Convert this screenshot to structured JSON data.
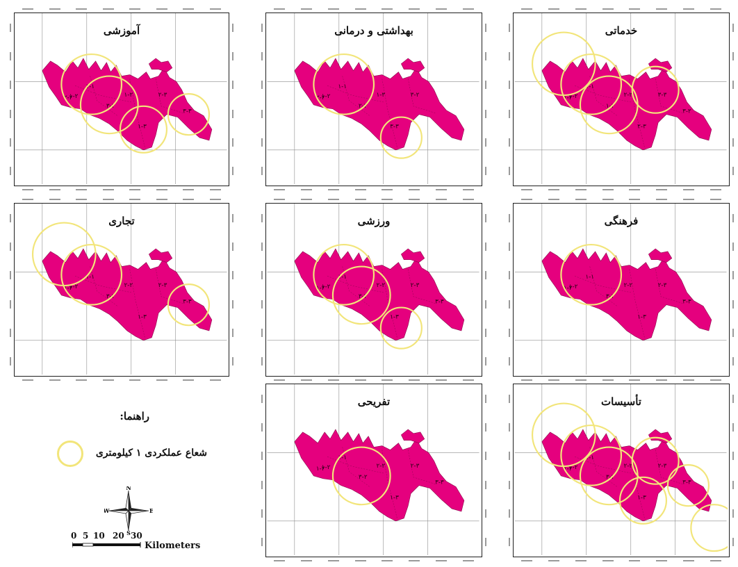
{
  "panels": [
    {
      "title": "آموزشی",
      "labels": [
        "۱-۱",
        "۱-۲",
        "۲-۲",
        "۱-۲",
        "۳-۲",
        "۱-۳",
        "۲-۳",
        "۳-۳"
      ],
      "circles": [
        "c1",
        "c2",
        "c3",
        "c5"
      ]
    },
    {
      "title": "بهداشتی و درمانی",
      "labels": [
        "۱-۱",
        "۱-۲",
        "۲-۲",
        "۱-۳",
        "۲-۳",
        "۳-۳",
        "۳-۲"
      ],
      "circles": [
        "c1",
        "c3b"
      ]
    },
    {
      "title": "خدماتی",
      "labels": [
        "۱-۱",
        "۱-۲",
        "۱-۲",
        "۲-۲",
        "۱-۳",
        "۲-۳",
        "۳-۳",
        "۳-۲"
      ],
      "circles": [
        "c0",
        "c1",
        "c2",
        "c4"
      ]
    },
    {
      "title": "تجاری",
      "labels": [
        "۱-۱",
        "۱-۲",
        "۱-۲",
        "۲-۲",
        "۳-۲",
        "۱-۳",
        "۲-۳",
        "۳-۳"
      ],
      "circles": [
        "c0",
        "c1",
        "c5"
      ]
    },
    {
      "title": "ورزشی",
      "labels": [
        "۱-۱",
        "۱-۲",
        "۱-۲",
        "۲-۲",
        "۳-۲",
        "۱-۳",
        "۲-۳",
        "۳-۳"
      ],
      "circles": [
        "c1",
        "c2",
        "c3b"
      ]
    },
    {
      "title": "فرهنگی",
      "labels": [
        "۱-۱",
        "۱-۲",
        "۱-۲",
        "۲-۲",
        "۳-۲",
        "۱-۳",
        "۲-۳",
        "۳-۳"
      ],
      "circles": [
        "c1"
      ]
    },
    {
      "title": "تفریحی",
      "labels": [
        "۱-۱",
        "۱-۲",
        "۱-۲",
        "۲-۲",
        "۳-۲",
        "۱-۳",
        "۲-۳",
        "۳-۳"
      ],
      "circles": [
        "c2"
      ]
    },
    {
      "title": "تأسیسات",
      "labels": [
        "۱-۱",
        "۱-۲",
        "۱-۲",
        "۲-۲",
        "۳-۲",
        "۱-۳",
        "۲-۳",
        "۳-۳"
      ],
      "circles": [
        "c0",
        "c1",
        "c2",
        "c3",
        "c4",
        "c5",
        "c6"
      ]
    }
  ],
  "legend": {
    "title": "راهنما:",
    "item_label": "شعاع عملکردی ۱ کیلومتری",
    "compass": {
      "n": "N",
      "s": "S",
      "e": "E",
      "w": "W"
    },
    "scale_numbers": [
      "0",
      "5",
      "10",
      "20",
      "30"
    ],
    "scale_units": "Kilometers"
  },
  "colors": {
    "region_fill": "#e5007e",
    "region_stroke": "#8a0a4c",
    "buffer_stroke": "#f2e57a",
    "grid": "#8c8c8c",
    "frame": "#1e1e1e"
  },
  "icons": {
    "compass": "north-arrow-compass-rose-icon",
    "buffer": "buffer-circle-icon"
  }
}
